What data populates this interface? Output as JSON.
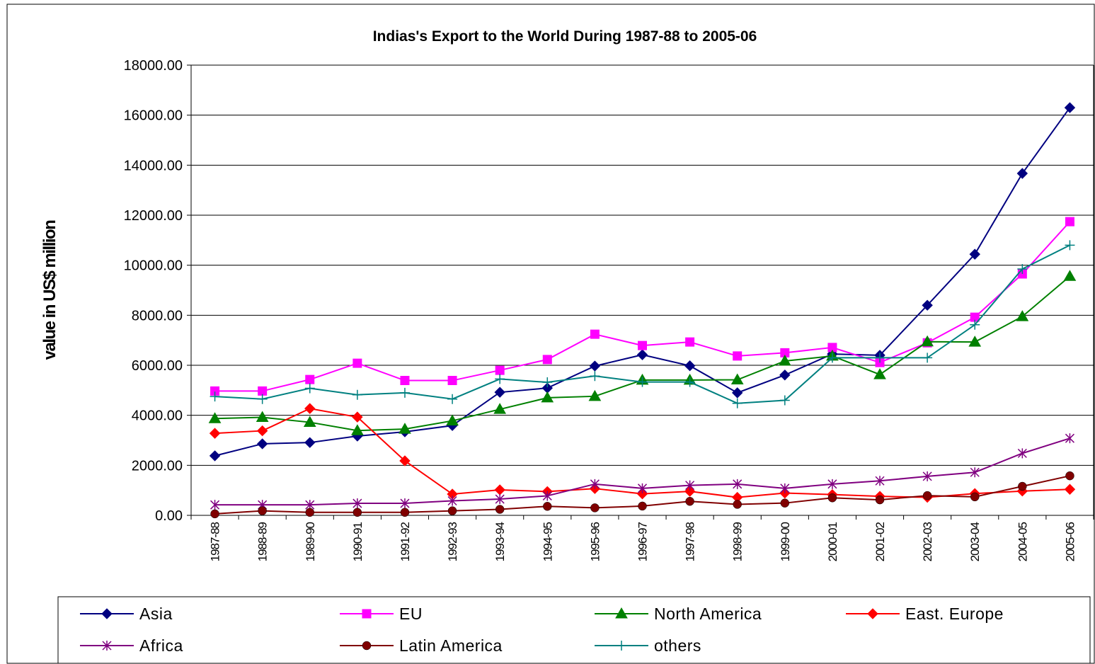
{
  "chart_data": {
    "type": "line",
    "title": "Indias's Export to the World During 1987-88 to 2005-06",
    "y_label": "value in US$ million",
    "categories": [
      "1987-88",
      "1988-89",
      "1989-90",
      "1990-91",
      "1991-92",
      "1992-93",
      "1993-94",
      "1994-95",
      "1995-96",
      "1996-97",
      "1997-98",
      "1998-99",
      "1999-00",
      "2000-01",
      "2001-02",
      "2002-03",
      "2003-04",
      "2004-05",
      "2005-06"
    ],
    "ylim": [
      0,
      18000
    ],
    "yticks": [
      {
        "value": 0,
        "label": "0.00"
      },
      {
        "value": 2000,
        "label": "2000.00"
      },
      {
        "value": 4000,
        "label": "4000.00"
      },
      {
        "value": 6000,
        "label": "6000.00"
      },
      {
        "value": 8000,
        "label": "8000.00"
      },
      {
        "value": 10000,
        "label": "10000.00"
      },
      {
        "value": 12000,
        "label": "12000.00"
      },
      {
        "value": 14000,
        "label": "14000.00"
      },
      {
        "value": 16000,
        "label": "16000.00"
      },
      {
        "value": 18000,
        "label": "18000.00"
      }
    ],
    "grid": true,
    "legend": "bottom",
    "series": [
      {
        "name": "Asia",
        "color": "#000080",
        "marker": "diamond",
        "values": [
          2380,
          2860,
          2910,
          3170,
          3340,
          3590,
          4920,
          5090,
          5970,
          6420,
          5980,
          4900,
          5610,
          6450,
          6400,
          8400,
          10440,
          13670,
          16300
        ]
      },
      {
        "name": "EU",
        "color": "#ff00ff",
        "marker": "square",
        "values": [
          4970,
          4970,
          5430,
          6080,
          5390,
          5390,
          5800,
          6230,
          7240,
          6790,
          6930,
          6370,
          6500,
          6710,
          6110,
          6900,
          7920,
          9650,
          11740
        ]
      },
      {
        "name": "North America",
        "color": "#008000",
        "marker": "triangle",
        "values": [
          3870,
          3920,
          3720,
          3390,
          3450,
          3780,
          4240,
          4700,
          4760,
          5410,
          5410,
          5420,
          6170,
          6370,
          5630,
          6940,
          6930,
          7950,
          9560
        ]
      },
      {
        "name": "East. Europe",
        "color": "#ff0000",
        "marker": "diamond",
        "values": [
          3280,
          3380,
          4270,
          3930,
          2180,
          850,
          1020,
          950,
          1070,
          860,
          960,
          720,
          890,
          830,
          760,
          720,
          870,
          970,
          1040
        ]
      },
      {
        "name": "Africa",
        "color": "#800080",
        "marker": "star",
        "values": [
          420,
          420,
          420,
          480,
          480,
          580,
          650,
          780,
          1250,
          1080,
          1200,
          1250,
          1080,
          1250,
          1380,
          1560,
          1720,
          2480,
          3080
        ]
      },
      {
        "name": "Latin America",
        "color": "#800000",
        "marker": "circle",
        "values": [
          60,
          180,
          120,
          120,
          120,
          180,
          240,
          360,
          300,
          370,
          560,
          440,
          490,
          700,
          620,
          790,
          740,
          1160,
          1580
        ]
      },
      {
        "name": "others",
        "color": "#008080",
        "marker": "plus",
        "values": [
          4750,
          4650,
          5080,
          4820,
          4900,
          4650,
          5450,
          5320,
          5570,
          5330,
          5330,
          4480,
          4600,
          6300,
          6300,
          6300,
          7620,
          9850,
          10800
        ]
      }
    ]
  }
}
